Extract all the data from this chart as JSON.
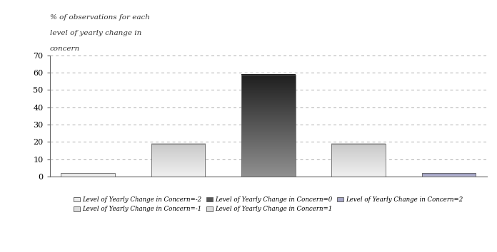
{
  "categories": [
    "-2",
    "-1",
    "0",
    "1",
    "2"
  ],
  "values": [
    2,
    19,
    59,
    19,
    2
  ],
  "bar_top_colors": [
    "#e0e0e0",
    "#c8c8c8",
    "#1e1e1e",
    "#c8c8c8",
    "#9090b8"
  ],
  "bar_bottom_colors": [
    "#f5f5f5",
    "#f0f0f0",
    "#909090",
    "#f0f0f0",
    "#c0c0d8"
  ],
  "bar_edge_color": "#666666",
  "bar_edge_width": 0.6,
  "ylabel_lines": [
    "% of observations for each",
    "level of yearly change in",
    "concern"
  ],
  "ylim": [
    0,
    70
  ],
  "yticks": [
    0,
    10,
    20,
    30,
    40,
    50,
    60,
    70
  ],
  "background_color": "#ffffff",
  "legend_labels": [
    "Level of Yearly Change in Concern=-2",
    "Level of Yearly Change in Concern=-1",
    "Level of Yearly Change in Concern=0",
    "Level of Yearly Change in Concern=1",
    "Level of Yearly Change in Concern=2"
  ],
  "legend_colors_top": [
    "#e0e0e0",
    "#c8c8c8",
    "#1e1e1e",
    "#c8c8c8",
    "#9090b8"
  ],
  "legend_colors_bot": [
    "#f5f5f5",
    "#f0f0f0",
    "#909090",
    "#f0f0f0",
    "#c0c0d8"
  ]
}
